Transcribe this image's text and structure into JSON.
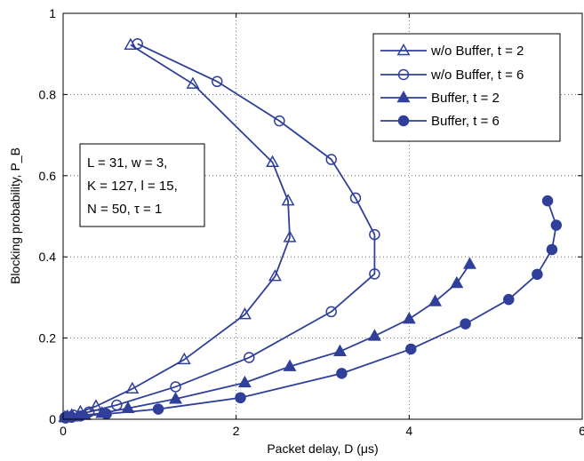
{
  "chart_data": {
    "type": "line",
    "xlabel": "Packet delay, D (μs)",
    "ylabel": "Blocking probability, P_B",
    "xlim": [
      0,
      6
    ],
    "ylim": [
      0,
      1
    ],
    "x_ticks": [
      "0",
      "2",
      "4",
      "6"
    ],
    "y_ticks": [
      "0",
      "0.2",
      "0.4",
      "0.6",
      "0.8",
      "1"
    ],
    "grid": true,
    "legend_position": "top-right",
    "series": [
      {
        "name": "w/o Buffer, t = 2",
        "marker": "triangle-open",
        "x": [
          0.02,
          0.05,
          0.1,
          0.2,
          0.38,
          0.8,
          1.4,
          2.1,
          2.45,
          2.62,
          2.6,
          2.42,
          1.5,
          0.78
        ],
        "y": [
          0.005,
          0.007,
          0.01,
          0.018,
          0.032,
          0.075,
          0.147,
          0.258,
          0.352,
          0.448,
          0.538,
          0.633,
          0.826,
          0.922
        ]
      },
      {
        "name": "w/o Buffer, t = 6",
        "marker": "circle-open",
        "x": [
          0.02,
          0.05,
          0.12,
          0.3,
          0.62,
          1.3,
          2.15,
          3.1,
          3.6,
          3.6,
          3.38,
          3.1,
          2.5,
          1.78,
          0.86
        ],
        "y": [
          0.004,
          0.006,
          0.01,
          0.018,
          0.035,
          0.08,
          0.152,
          0.265,
          0.358,
          0.455,
          0.545,
          0.64,
          0.735,
          0.832,
          0.925
        ]
      },
      {
        "name": "Buffer, t = 2",
        "marker": "triangle-filled",
        "x": [
          0.03,
          0.1,
          0.25,
          0.45,
          0.75,
          1.3,
          2.1,
          2.62,
          3.2,
          3.6,
          4.0,
          4.3,
          4.55,
          4.7
        ],
        "y": [
          0.004,
          0.006,
          0.01,
          0.015,
          0.027,
          0.05,
          0.09,
          0.13,
          0.167,
          0.205,
          0.247,
          0.29,
          0.335,
          0.382
        ]
      },
      {
        "name": "Buffer, t = 6",
        "marker": "circle-filled",
        "x": [
          0.03,
          0.1,
          0.2,
          0.5,
          1.1,
          2.05,
          3.22,
          4.02,
          4.65,
          5.15,
          5.48,
          5.65,
          5.7,
          5.6
        ],
        "y": [
          0.003,
          0.005,
          0.008,
          0.013,
          0.025,
          0.053,
          0.113,
          0.173,
          0.235,
          0.295,
          0.357,
          0.418,
          0.478,
          0.538
        ]
      }
    ],
    "annotation_lines": [
      "L = 31, w = 3,",
      "K = 127, l = 15,",
      "N = 50, τ = 1"
    ],
    "colors": {
      "series": "#2f3f9a",
      "grid": "#555555",
      "axis": "#000000"
    }
  }
}
